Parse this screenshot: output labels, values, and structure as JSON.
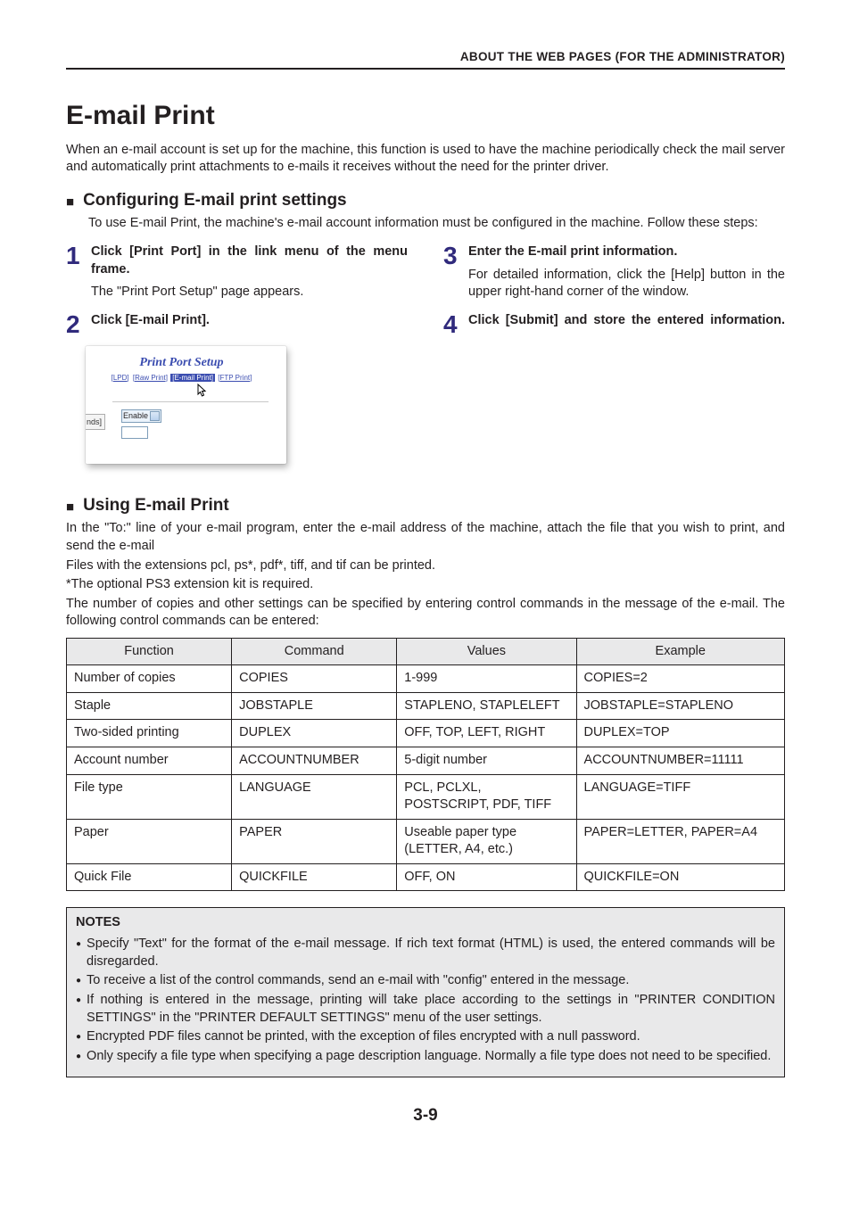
{
  "breadcrumb": "ABOUT THE WEB PAGES (FOR THE ADMINISTRATOR)",
  "h1": "E-mail Print",
  "intro": "When an e-mail account is set up for the machine, this function is used to have the machine periodically check the mail server and automatically print attachments to e-mails it receives without the need for the printer driver.",
  "configure": {
    "heading": "Configuring E-mail print settings",
    "sub": "To use E-mail Print, the machine's e-mail account information must be configured in the machine. Follow these steps:",
    "steps": {
      "s1": {
        "num": "1",
        "title": "Click [Print Port] in the link menu of the menu frame.",
        "desc": "The \"Print Port Setup\" page appears."
      },
      "s2": {
        "num": "2",
        "title": "Click [E-mail Print]."
      },
      "s3": {
        "num": "3",
        "title": "Enter the E-mail print information.",
        "desc": "For detailed information, click the [Help] button in the upper right-hand corner of the window."
      },
      "s4": {
        "num": "4",
        "title": "Click [Submit] and store the entered information."
      }
    },
    "screenshot": {
      "title": "Print Port Setup",
      "links": {
        "lpd": "[LPD]",
        "raw": "[Raw Print]",
        "email": "[E-mail Print]",
        "ftp": "[FTP Print]"
      },
      "nds_label": "nds]",
      "enable_label": "Enable"
    }
  },
  "using": {
    "heading": "Using E-mail Print",
    "p1": "In the \"To:\" line of your e-mail program, enter the e-mail address of the machine, attach the file that you wish to print, and send the e-mail",
    "p2": "Files with the extensions pcl, ps*, pdf*, tiff, and tif can be printed.",
    "p3": "*The optional PS3 extension kit is required.",
    "p4": "The number of copies and other settings can be specified by entering control commands in the message of the e-mail. The following control commands can be entered:"
  },
  "table": {
    "headers": {
      "fn": "Function",
      "cmd": "Command",
      "val": "Values",
      "ex": "Example"
    },
    "rows": [
      {
        "fn": "Number of copies",
        "cmd": "COPIES",
        "val": "1-999",
        "ex": "COPIES=2"
      },
      {
        "fn": "Staple",
        "cmd": "JOBSTAPLE",
        "val": "STAPLENO, STAPLELEFT",
        "ex": "JOBSTAPLE=STAPLENO"
      },
      {
        "fn": "Two-sided printing",
        "cmd": "DUPLEX",
        "val": "OFF, TOP, LEFT, RIGHT",
        "ex": "DUPLEX=TOP"
      },
      {
        "fn": "Account number",
        "cmd": "ACCOUNTNUMBER",
        "val": "5-digit number",
        "ex": "ACCOUNTNUMBER=11111"
      },
      {
        "fn": "File type",
        "cmd": "LANGUAGE",
        "val": "PCL, PCLXL, POSTSCRIPT, PDF, TIFF",
        "ex": "LANGUAGE=TIFF"
      },
      {
        "fn": "Paper",
        "cmd": "PAPER",
        "val": "Useable paper type (LETTER,  A4, etc.)",
        "ex": "PAPER=LETTER, PAPER=A4"
      },
      {
        "fn": "Quick File",
        "cmd": "QUICKFILE",
        "val": "OFF, ON",
        "ex": "QUICKFILE=ON"
      }
    ]
  },
  "notes": {
    "heading": "NOTES",
    "items": [
      "Specify \"Text\" for the format of the e-mail message. If rich text format (HTML) is used, the entered commands will be disregarded.",
      "To receive a list of the control commands, send an e-mail with \"config\" entered in the message.",
      "If nothing is entered in the message, printing will take place according to the settings in \"PRINTER CONDITION SETTINGS\" in the \"PRINTER DEFAULT SETTINGS\" menu of the user settings.",
      "Encrypted PDF files cannot be printed, with the exception of files encrypted with a null password.",
      "Only specify a file type when specifying a page description language. Normally a file type does not need to be specified."
    ]
  },
  "pagenum": "3-9",
  "colors": {
    "accent": "#302a7c"
  }
}
